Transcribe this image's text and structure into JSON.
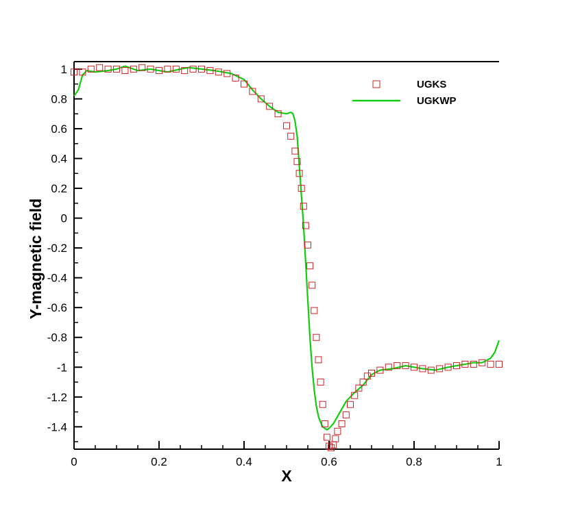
{
  "chart_data": {
    "type": "scatter",
    "title": "",
    "xlabel": "X",
    "ylabel": "Y-magnetic field",
    "xlim": [
      0,
      1
    ],
    "ylim": [
      -1.55,
      1.05
    ],
    "xticks": [
      0,
      0.2,
      0.4,
      0.6,
      0.8,
      1
    ],
    "xtick_labels": [
      "0",
      "0.2",
      "0.4",
      "0.6",
      "0.8",
      "1"
    ],
    "yticks": [
      1,
      0.8,
      0.6,
      0.4,
      0.2,
      0,
      -0.2,
      -0.4,
      -0.6,
      -0.8,
      -1,
      -1.2,
      -1.4
    ],
    "ytick_labels": [
      "1",
      "0.8",
      "0.6",
      "0.4",
      "0.2",
      "0",
      "-0.2",
      "-0.4",
      "-0.6",
      "-0.8",
      "-1",
      "-1.2",
      "-1.4"
    ],
    "grid": false,
    "legend_position": "top-right",
    "series": [
      {
        "name": "UGKS",
        "type": "scatter",
        "marker": "open-square",
        "color": "#cc2222",
        "x": [
          0.0,
          0.02,
          0.04,
          0.06,
          0.08,
          0.1,
          0.12,
          0.14,
          0.16,
          0.18,
          0.2,
          0.22,
          0.24,
          0.26,
          0.28,
          0.3,
          0.32,
          0.34,
          0.36,
          0.38,
          0.4,
          0.42,
          0.44,
          0.46,
          0.48,
          0.5,
          0.51,
          0.52,
          0.525,
          0.53,
          0.535,
          0.54,
          0.545,
          0.55,
          0.555,
          0.56,
          0.565,
          0.57,
          0.575,
          0.58,
          0.585,
          0.59,
          0.595,
          0.6,
          0.605,
          0.61,
          0.615,
          0.62,
          0.63,
          0.64,
          0.65,
          0.66,
          0.67,
          0.68,
          0.69,
          0.7,
          0.72,
          0.74,
          0.76,
          0.78,
          0.8,
          0.82,
          0.84,
          0.86,
          0.88,
          0.9,
          0.92,
          0.94,
          0.96,
          0.98,
          1.0
        ],
        "y": [
          0.98,
          0.98,
          1.0,
          1.01,
          1.0,
          1.0,
          0.99,
          1.0,
          1.01,
          1.0,
          0.99,
          1.0,
          1.0,
          0.99,
          1.0,
          1.0,
          0.99,
          0.98,
          0.97,
          0.94,
          0.9,
          0.85,
          0.8,
          0.75,
          0.7,
          0.62,
          0.55,
          0.45,
          0.38,
          0.3,
          0.2,
          0.08,
          -0.05,
          -0.18,
          -0.32,
          -0.45,
          -0.62,
          -0.8,
          -0.95,
          -1.1,
          -1.25,
          -1.38,
          -1.47,
          -1.53,
          -1.54,
          -1.52,
          -1.48,
          -1.43,
          -1.38,
          -1.32,
          -1.25,
          -1.19,
          -1.14,
          -1.1,
          -1.06,
          -1.04,
          -1.02,
          -1.0,
          -0.99,
          -0.99,
          -1.0,
          -1.01,
          -1.02,
          -1.01,
          -1.0,
          -0.99,
          -0.98,
          -0.98,
          -0.97,
          -0.98,
          -0.98
        ]
      },
      {
        "name": "UGKWP",
        "type": "line",
        "color": "#11cc11",
        "x": [
          0.0,
          0.01,
          0.02,
          0.03,
          0.05,
          0.08,
          0.1,
          0.12,
          0.13,
          0.15,
          0.18,
          0.2,
          0.22,
          0.25,
          0.27,
          0.3,
          0.33,
          0.35,
          0.37,
          0.4,
          0.42,
          0.44,
          0.46,
          0.48,
          0.5,
          0.51,
          0.515,
          0.52,
          0.525,
          0.53,
          0.535,
          0.54,
          0.545,
          0.55,
          0.555,
          0.56,
          0.565,
          0.57,
          0.575,
          0.58,
          0.585,
          0.59,
          0.595,
          0.6,
          0.61,
          0.62,
          0.63,
          0.64,
          0.66,
          0.68,
          0.7,
          0.72,
          0.75,
          0.78,
          0.8,
          0.82,
          0.85,
          0.88,
          0.9,
          0.92,
          0.94,
          0.96,
          0.98,
          0.99,
          1.0
        ],
        "y": [
          0.82,
          0.86,
          0.96,
          0.99,
          0.98,
          0.99,
          1.0,
          1.02,
          1.01,
          0.99,
          1.0,
          0.99,
          0.98,
          1.0,
          1.01,
          1.0,
          0.99,
          0.98,
          0.97,
          0.93,
          0.86,
          0.8,
          0.75,
          0.71,
          0.7,
          0.71,
          0.7,
          0.65,
          0.55,
          0.35,
          0.15,
          -0.05,
          -0.3,
          -0.55,
          -0.8,
          -1.0,
          -1.15,
          -1.26,
          -1.33,
          -1.37,
          -1.4,
          -1.41,
          -1.42,
          -1.41,
          -1.38,
          -1.33,
          -1.28,
          -1.23,
          -1.17,
          -1.12,
          -1.05,
          -1.02,
          -1.01,
          -0.99,
          -1.0,
          -1.01,
          -1.02,
          -1.0,
          -0.99,
          -0.98,
          -0.97,
          -0.97,
          -0.94,
          -0.9,
          -0.82
        ]
      }
    ]
  }
}
